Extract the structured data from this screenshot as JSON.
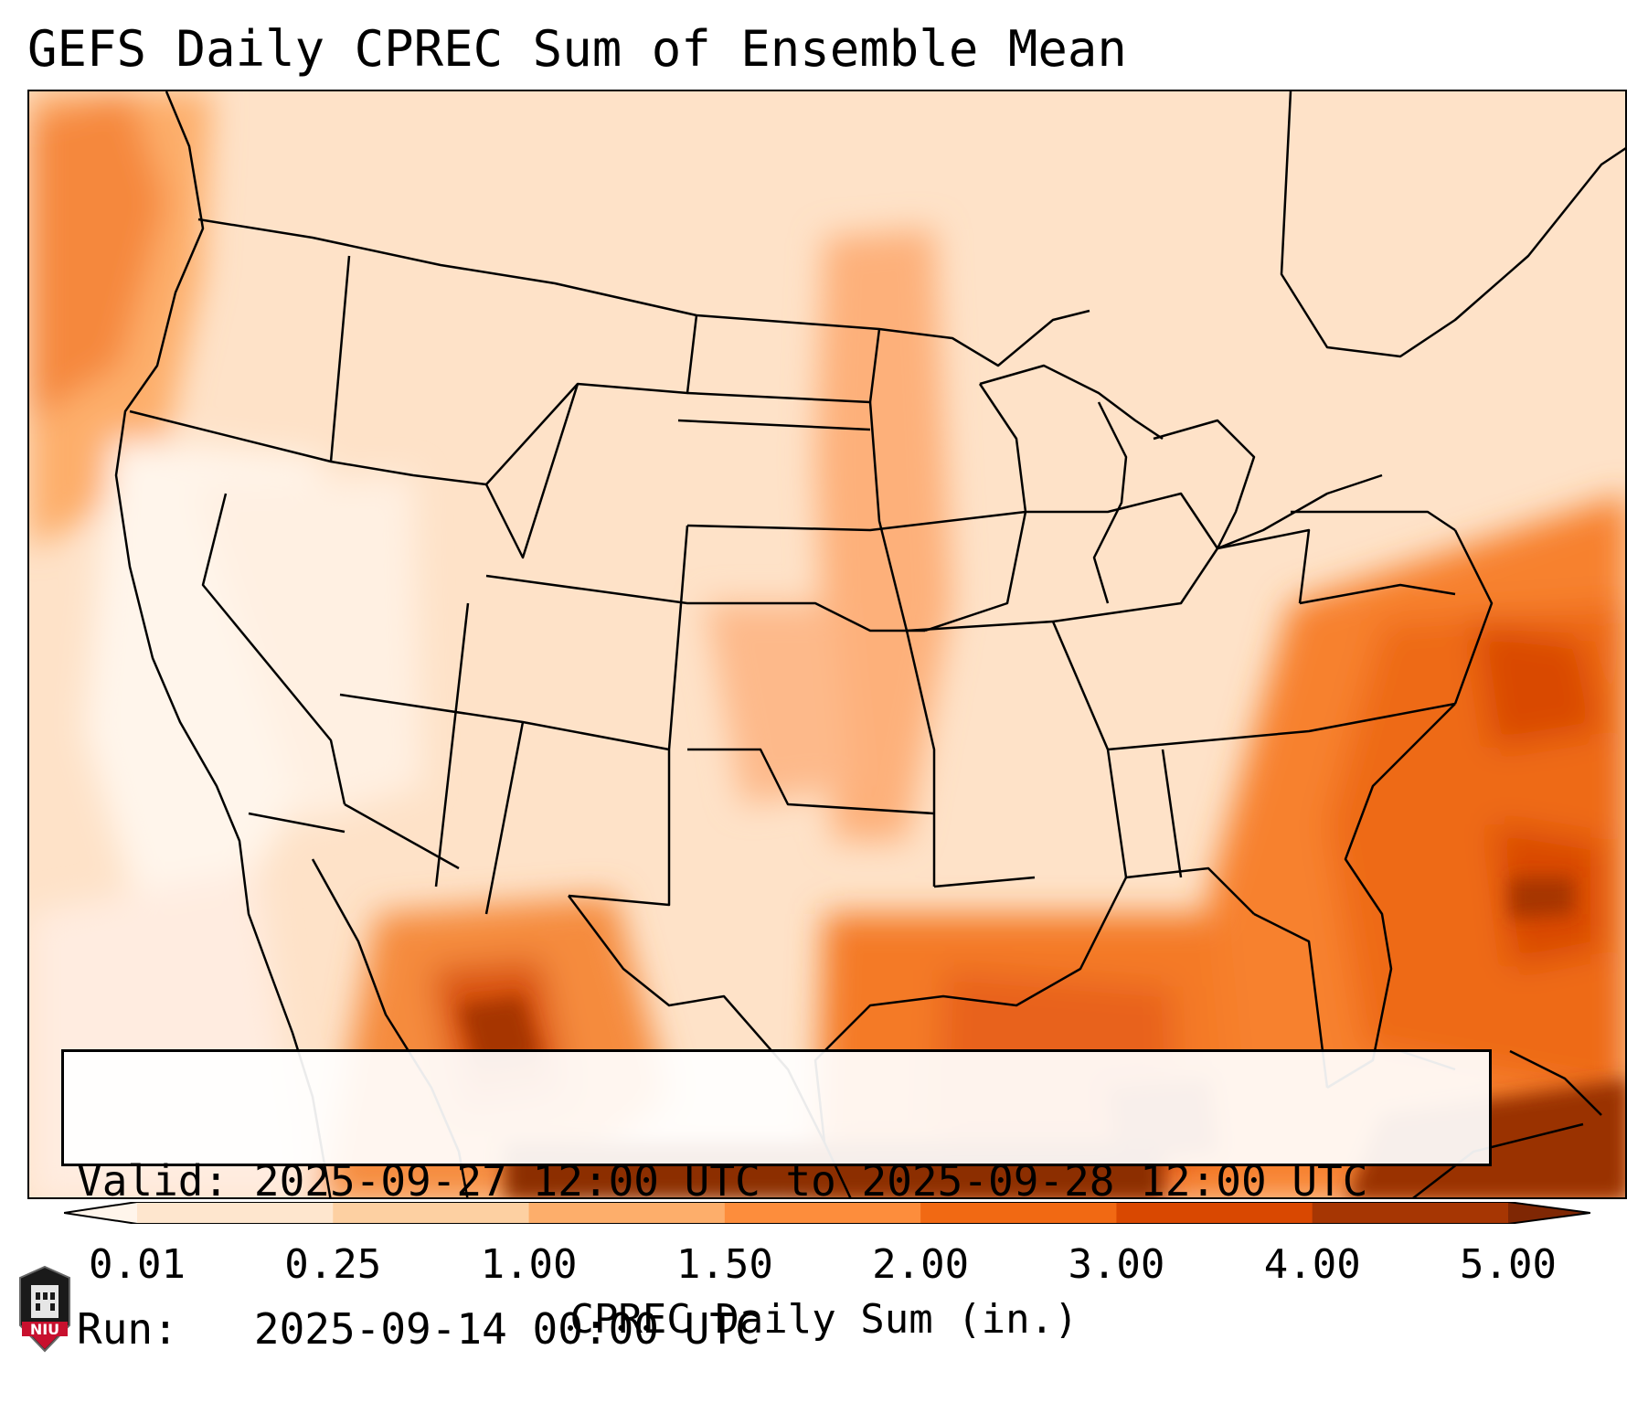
{
  "title": "GEFS Daily CPREC Sum of Ensemble Mean",
  "info_box": {
    "valid_label": "Valid:",
    "valid_value": "2025-09-27 12:00 UTC to 2025-09-28 12:00 UTC",
    "run_label": "Run:",
    "run_value": "2025-09-14 00:00 UTC"
  },
  "colorbar": {
    "label": "CPREC Daily Sum (in.)",
    "ticks": [
      "0.01",
      "0.25",
      "1.00",
      "1.50",
      "2.00",
      "3.00",
      "4.00",
      "5.00"
    ],
    "colors": [
      "#fff5eb",
      "#fee6ce",
      "#fdd0a2",
      "#fdae6b",
      "#fd8d3c",
      "#f16913",
      "#d94801",
      "#a63603",
      "#7f2704"
    ]
  },
  "logo": {
    "text": "NIU"
  },
  "colors": {
    "ocean_low": "#fde2c8",
    "heavy": "#d94801",
    "max": "#7f2704",
    "border": "#000000"
  }
}
